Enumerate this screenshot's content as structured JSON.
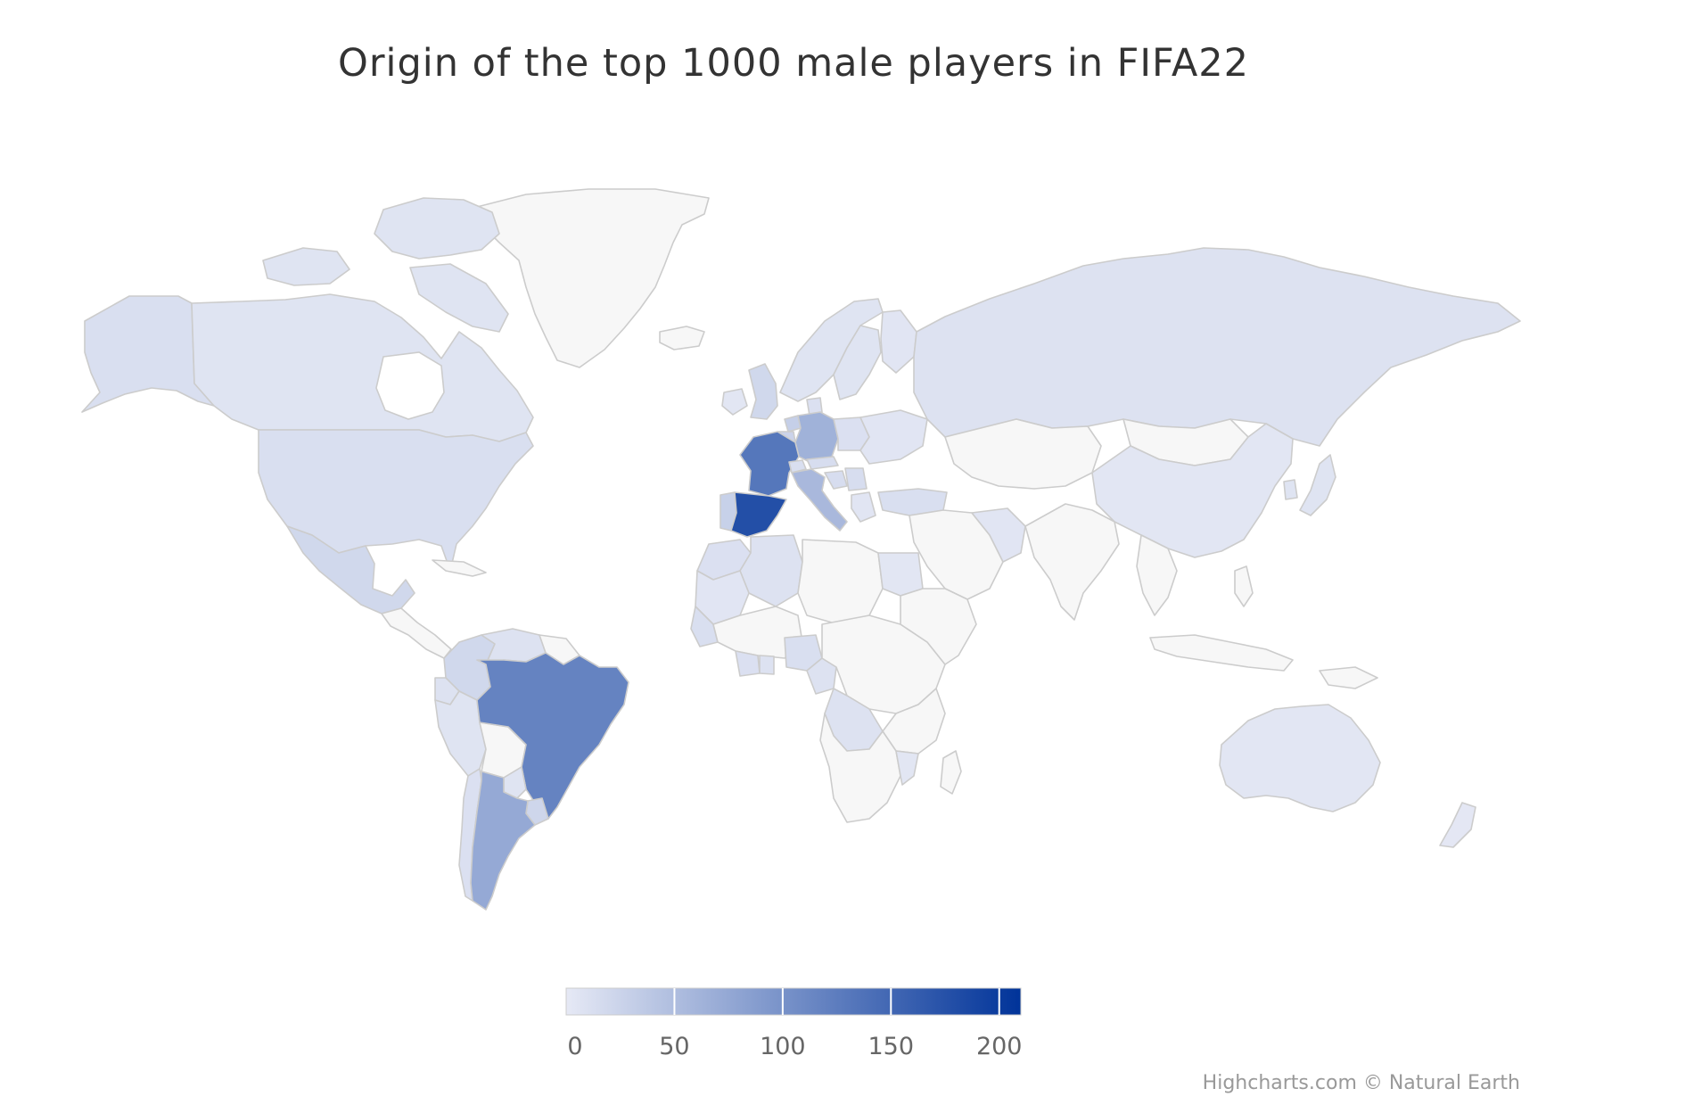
{
  "chart": {
    "title": "Origin of the top 1000 male players in FIFA22",
    "credits": "Highcharts.com © Natural Earth"
  },
  "colors": {
    "no_data": "#f7f7f7",
    "border": "#cccccc",
    "scale_min": "#e6e9f5",
    "scale_max": "#003399"
  },
  "legend": {
    "min": 0,
    "max": 210,
    "ticks": [
      0,
      50,
      100,
      150,
      200
    ],
    "tick_labels": [
      "0",
      "50",
      "100",
      "150",
      "200"
    ]
  },
  "chart_data": {
    "type": "map",
    "title": "Origin of the top 1000 male players in FIFA22",
    "color_axis": {
      "min": 0,
      "max": 210
    },
    "regions": [
      {
        "name": "Canada",
        "value": 6
      },
      {
        "name": "United States",
        "value": 12
      },
      {
        "name": "Mexico",
        "value": 20
      },
      {
        "name": "Colombia",
        "value": 20
      },
      {
        "name": "Venezuela",
        "value": 8
      },
      {
        "name": "Ecuador",
        "value": 8
      },
      {
        "name": "Peru",
        "value": 6
      },
      {
        "name": "Brazil",
        "value": 118
      },
      {
        "name": "Chile",
        "value": 10
      },
      {
        "name": "Argentina",
        "value": 74
      },
      {
        "name": "Uruguay",
        "value": 22
      },
      {
        "name": "Paraguay",
        "value": 6
      },
      {
        "name": "Spain",
        "value": 178
      },
      {
        "name": "Portugal",
        "value": 28
      },
      {
        "name": "France",
        "value": 132
      },
      {
        "name": "Germany",
        "value": 64
      },
      {
        "name": "Italy",
        "value": 56
      },
      {
        "name": "United Kingdom",
        "value": 20
      },
      {
        "name": "Ireland",
        "value": 4
      },
      {
        "name": "Netherlands",
        "value": 30
      },
      {
        "name": "Belgium",
        "value": 25
      },
      {
        "name": "Switzerland",
        "value": 12
      },
      {
        "name": "Austria",
        "value": 14
      },
      {
        "name": "Poland",
        "value": 10
      },
      {
        "name": "Denmark",
        "value": 10
      },
      {
        "name": "Norway",
        "value": 6
      },
      {
        "name": "Sweden",
        "value": 6
      },
      {
        "name": "Croatia",
        "value": 14
      },
      {
        "name": "Serbia",
        "value": 14
      },
      {
        "name": "Turkey",
        "value": 12
      },
      {
        "name": "Russia",
        "value": 8
      },
      {
        "name": "Morocco",
        "value": 10
      },
      {
        "name": "Algeria",
        "value": 8
      },
      {
        "name": "Egypt",
        "value": 4
      },
      {
        "name": "Senegal",
        "value": 12
      },
      {
        "name": "Nigeria",
        "value": 12
      },
      {
        "name": "Ghana",
        "value": 8
      },
      {
        "name": "Ivory Coast",
        "value": 10
      },
      {
        "name": "Cameroon",
        "value": 8
      },
      {
        "name": "DR Congo",
        "value": 8
      },
      {
        "name": "Mozambique",
        "value": 4
      },
      {
        "name": "China",
        "value": 4
      },
      {
        "name": "Japan",
        "value": 6
      },
      {
        "name": "South Korea",
        "value": 6
      },
      {
        "name": "Australia",
        "value": 4
      },
      {
        "name": "New Zealand",
        "value": 2
      }
    ]
  }
}
